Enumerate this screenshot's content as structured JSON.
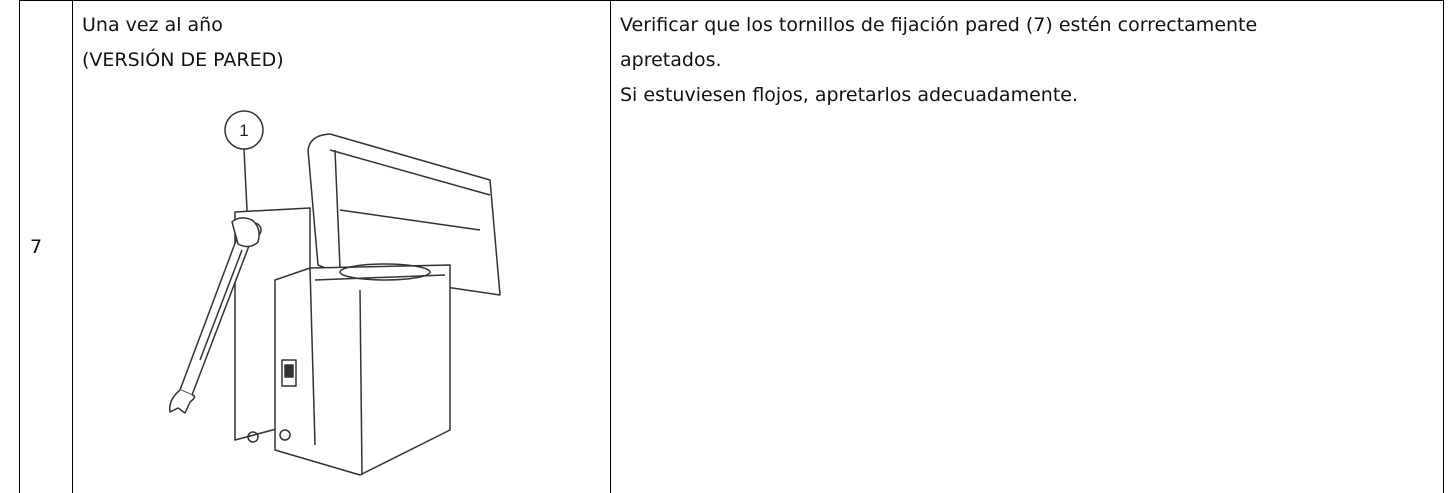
{
  "table": {
    "rows": [
      {
        "number": "7",
        "frequency": [
          "Una vez al año",
          "(VERSIÓN DE PARED)"
        ],
        "callout": "1",
        "description": [
          "Verificar que los tornillos de fijación pared (7) estén correctamente",
          "apretados.",
          "Si estuviesen flojos, apretarlos adecuadamente."
        ]
      }
    ]
  }
}
